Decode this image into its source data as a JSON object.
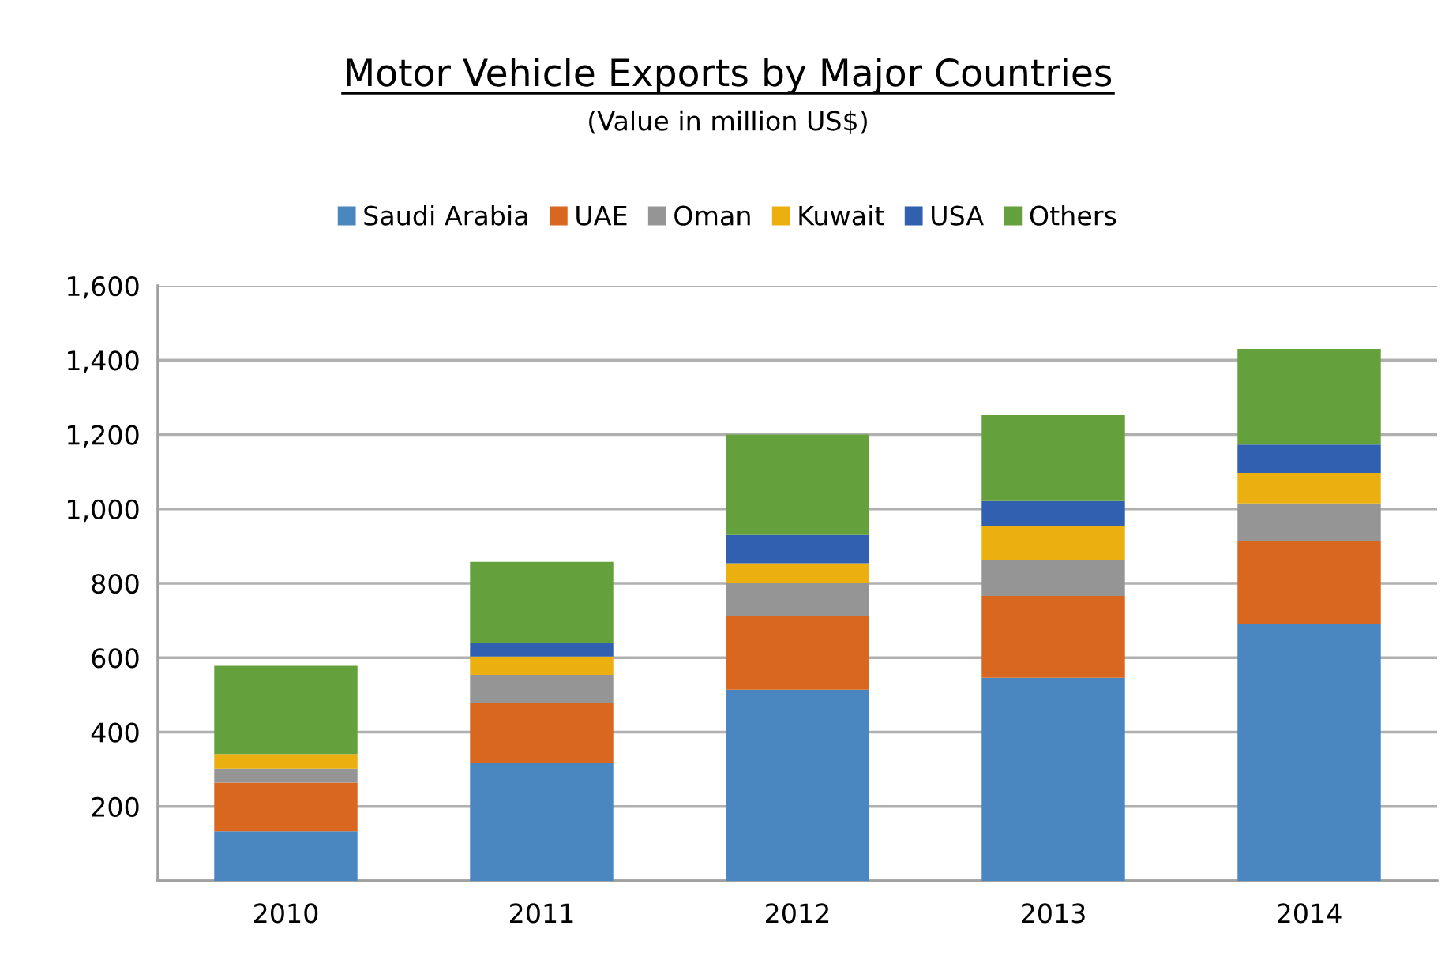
{
  "chart_data": {
    "type": "bar",
    "title": "Motor Vehicle Exports by Major Countries",
    "subtitle": "(Value in million US$)",
    "categories": [
      "2010",
      "2011",
      "2012",
      "2013",
      "2014"
    ],
    "stacked": true,
    "series": [
      {
        "name": "Saudi Arabia",
        "color": "#4a86c0",
        "values": [
          133,
          317,
          514,
          546,
          690
        ]
      },
      {
        "name": "UAE",
        "color": "#d9671f",
        "values": [
          131,
          161,
          197,
          220,
          224
        ]
      },
      {
        "name": "Oman",
        "color": "#959595",
        "values": [
          38,
          76,
          89,
          96,
          101
        ]
      },
      {
        "name": "Kuwait",
        "color": "#ebaf10",
        "values": [
          39,
          49,
          54,
          91,
          82
        ]
      },
      {
        "name": "USA",
        "color": "#3160b0",
        "values": [
          0,
          36,
          76,
          68,
          76
        ]
      },
      {
        "name": "Others",
        "color": "#64a03c",
        "values": [
          237,
          219,
          270,
          231,
          257
        ]
      }
    ],
    "ylim": [
      0,
      1600
    ],
    "yticks": [
      {
        "value": 0,
        "label": null
      },
      {
        "value": 200,
        "label": "200"
      },
      {
        "value": 400,
        "label": "400"
      },
      {
        "value": 600,
        "label": "600"
      },
      {
        "value": 800,
        "label": "800"
      },
      {
        "value": 1000,
        "label": "1,000"
      },
      {
        "value": 1200,
        "label": "1,200"
      },
      {
        "value": 1400,
        "label": "1,400"
      },
      {
        "value": 1600,
        "label": "1,600"
      }
    ],
    "grid": "y",
    "legend": "top"
  }
}
